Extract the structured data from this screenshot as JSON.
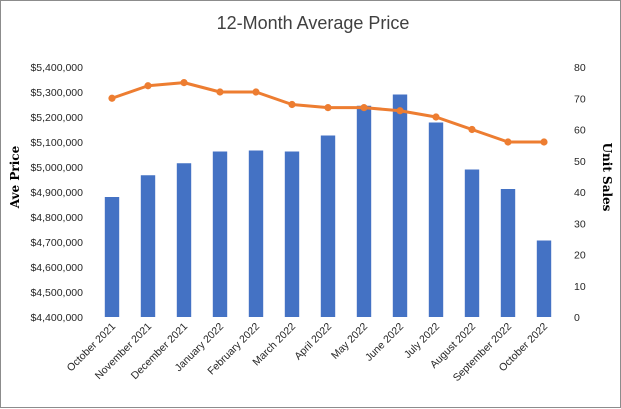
{
  "chart_data": {
    "type": "bar",
    "title": "12-Month Average Price",
    "categories": [
      "October 2021",
      "November 2021",
      "December 2021",
      "January 2022",
      "February 2022",
      "March 2022",
      "April 2022",
      "May 2022",
      "June 2022",
      "July 2022",
      "August 2022",
      "September 2022",
      "October 2022"
    ],
    "series": [
      {
        "name": "",
        "kind": "bar",
        "axis": "left",
        "color": "#4472c4",
        "values": [
          4880000,
          4967000,
          5015000,
          5062000,
          5066000,
          5062000,
          5126000,
          5245000,
          5290000,
          5178000,
          4990000,
          4912000,
          4706000
        ]
      },
      {
        "name": "",
        "kind": "line",
        "axis": "right",
        "color": "#ed7d31",
        "values": [
          70,
          74,
          75,
          72,
          72,
          68,
          67,
          67,
          66,
          64,
          60,
          56,
          56
        ]
      }
    ],
    "ylabel": "Ave Price",
    "y2label": "Unit Sales",
    "ylim": [
      4400000,
      5400000
    ],
    "y2lim": [
      0,
      80
    ],
    "yticks": [
      "$4,400,000",
      "$4,500,000",
      "$4,600,000",
      "$4,700,000",
      "$4,800,000",
      "$4,900,000",
      "$5,000,000",
      "$5,100,000",
      "$5,200,000",
      "$5,300,000",
      "$5,400,000"
    ],
    "y2ticks": [
      "0",
      "10",
      "20",
      "30",
      "40",
      "50",
      "60",
      "70",
      "80"
    ],
    "grid": false,
    "legend": "none"
  }
}
